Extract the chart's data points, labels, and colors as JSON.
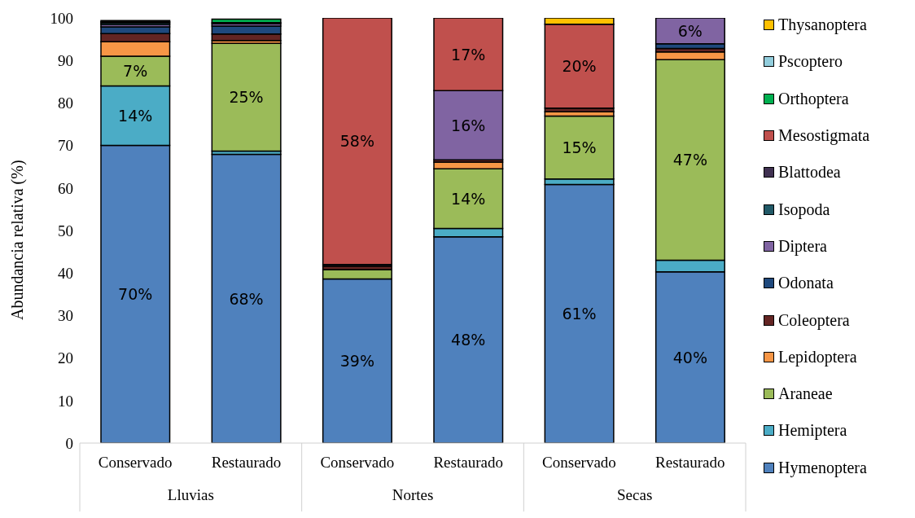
{
  "chart_data": {
    "type": "bar",
    "stacked": true,
    "ylabel": "Abundancia relativa (%)",
    "categories": [
      "Conservado",
      "Restaurado",
      "Conservado",
      "Restaurado",
      "Conservado",
      "Restaurado"
    ],
    "annotations": [
      "Lluvias",
      "Nortes",
      "Secas"
    ],
    "ylim": [
      0,
      100
    ],
    "yticks": [
      0,
      10,
      20,
      30,
      40,
      50,
      60,
      70,
      80,
      90,
      100
    ],
    "grid": false,
    "legend": "right",
    "series": [
      {
        "name": "Hymenoptera",
        "color": "#4f81bd",
        "values": [
          70,
          67.9,
          38.6,
          48.5,
          60.8,
          40.3
        ],
        "value_labels": [
          "70%",
          "68%",
          "39%",
          "48%",
          "61%",
          "40%"
        ]
      },
      {
        "name": "Hemiptera",
        "color": "#4bacc6",
        "values": [
          14,
          0.8,
          null,
          2,
          1.3,
          2.7
        ],
        "value_labels": [
          "14%",
          null,
          null,
          null,
          null,
          null
        ]
      },
      {
        "name": "Araneae",
        "color": "#9bbb59",
        "values": [
          7,
          25.3,
          2.2,
          14,
          14.8,
          47.2
        ],
        "value_labels": [
          "7%",
          "25%",
          null,
          "14%",
          "15%",
          "47%"
        ]
      },
      {
        "name": "Lepidoptera",
        "color": "#f79646",
        "values": [
          3.4,
          0.7,
          null,
          1.6,
          1,
          1.8
        ],
        "value_labels": [
          null,
          null,
          null,
          null,
          null,
          null
        ]
      },
      {
        "name": "Coleoptera",
        "color": "#632523",
        "values": [
          1.9,
          1.5,
          0.8,
          0.5,
          0.9,
          0.8
        ],
        "value_labels": [
          null,
          null,
          null,
          null,
          null,
          null
        ]
      },
      {
        "name": "Odonata",
        "color": "#1f497d",
        "values": [
          1.6,
          1.9,
          null,
          null,
          null,
          1.1
        ],
        "value_labels": [
          null,
          null,
          null,
          null,
          null,
          null
        ]
      },
      {
        "name": "Diptera",
        "color": "#8064a2",
        "values": [
          0.5,
          0.5,
          null,
          16.3,
          null,
          6.2
        ],
        "value_labels": [
          null,
          null,
          null,
          "16%",
          null,
          "6%"
        ]
      },
      {
        "name": "Isopoda",
        "color": "#215967",
        "values": [
          0.4,
          null,
          null,
          null,
          null,
          null
        ],
        "value_labels": [
          null,
          null,
          null,
          null,
          null,
          null
        ]
      },
      {
        "name": "Blattodea",
        "color": "#403151",
        "values": [
          0.3,
          0.3,
          0.4,
          null,
          null,
          null
        ],
        "value_labels": [
          null,
          null,
          null,
          null,
          null,
          null
        ]
      },
      {
        "name": "Mesostigmata",
        "color": "#c0504d",
        "values": [
          null,
          null,
          58,
          17.1,
          19.7,
          null
        ],
        "value_labels": [
          null,
          null,
          "58%",
          "17%",
          "20%",
          null
        ]
      },
      {
        "name": "Orthoptera",
        "color": "#00b050",
        "values": [
          null,
          0.8,
          null,
          null,
          null,
          null
        ],
        "value_labels": [
          null,
          null,
          null,
          null,
          null,
          null
        ]
      },
      {
        "name": "Pscoptero",
        "color": "#92cddc",
        "values": [
          0.3,
          null,
          null,
          null,
          null,
          null
        ],
        "value_labels": [
          null,
          null,
          null,
          null,
          null,
          null
        ]
      },
      {
        "name": "Thysanoptera",
        "color": "#ffc000",
        "values": [
          null,
          null,
          null,
          null,
          1.5,
          null
        ],
        "value_labels": [
          null,
          null,
          null,
          null,
          null,
          null
        ]
      }
    ]
  }
}
